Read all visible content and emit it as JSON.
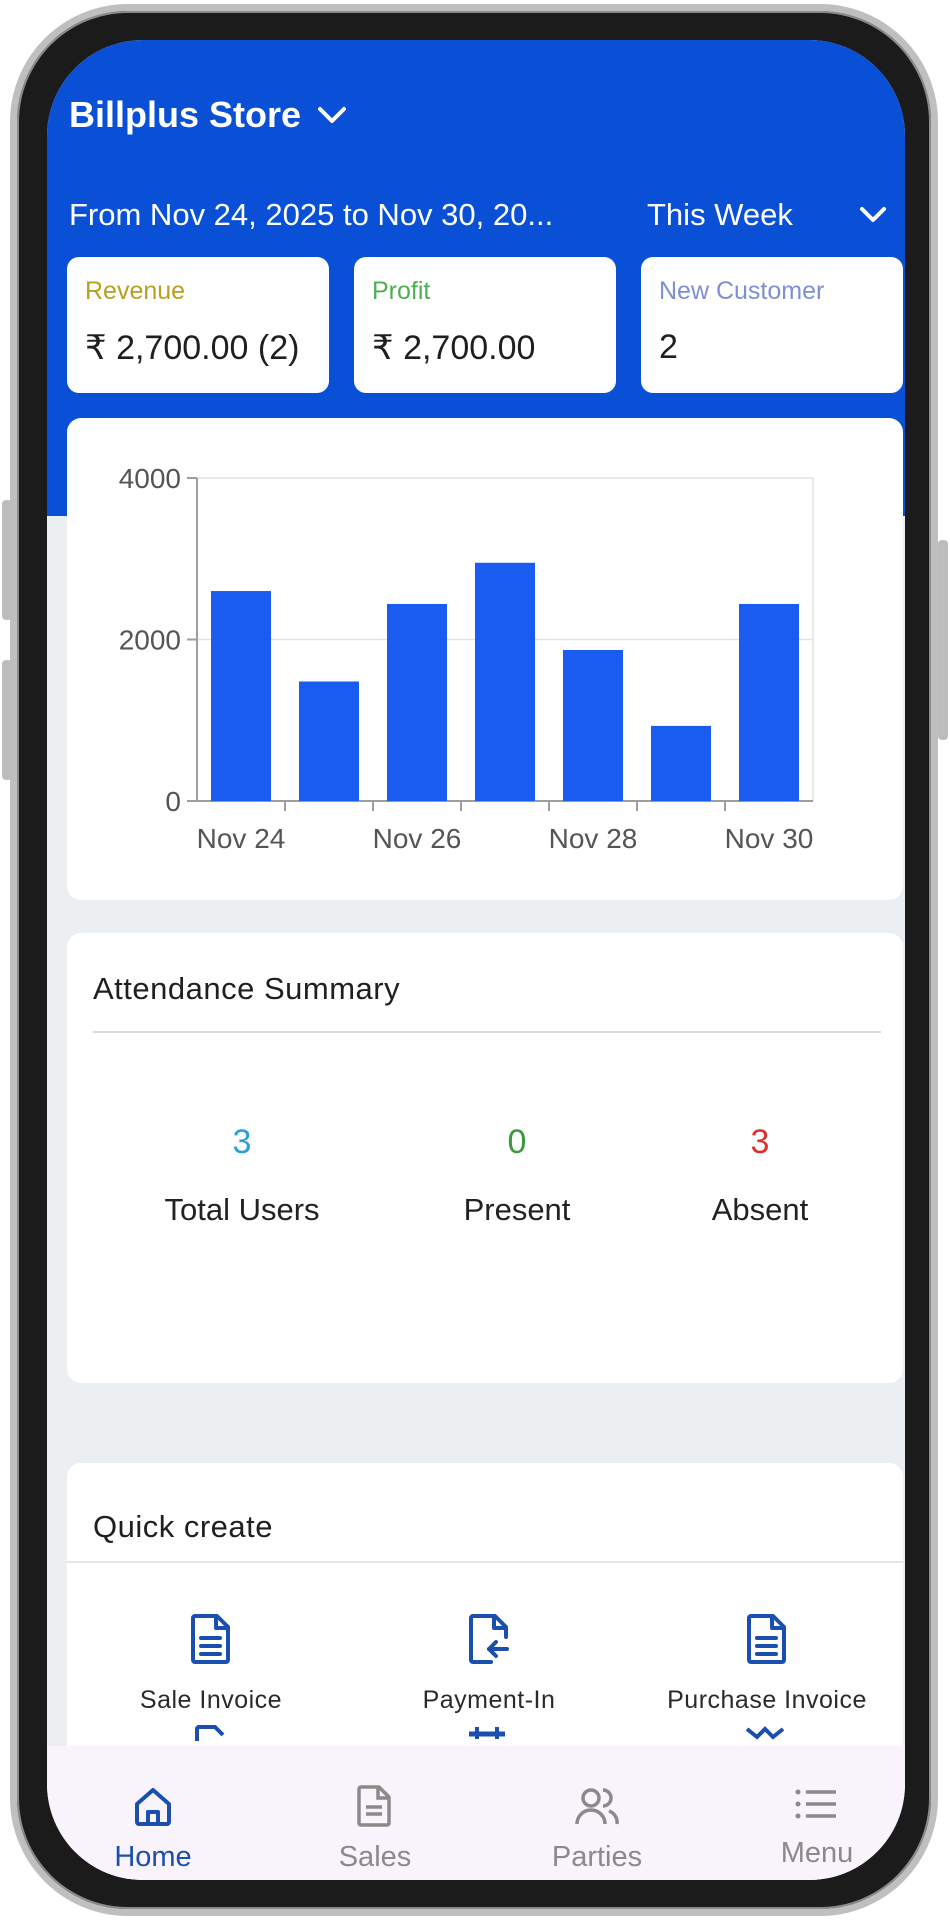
{
  "header": {
    "store_name": "Billplus Store",
    "date_range": "From Nov 24, 2025 to Nov 30, 20...",
    "period": "This Week"
  },
  "stats": [
    {
      "label": "Revenue",
      "value": "₹ 2,700.00 (2)",
      "color": "#b8a01e"
    },
    {
      "label": "Profit",
      "value": "₹ 2,700.00",
      "color": "#4caf50"
    },
    {
      "label": "New Customer",
      "value": "2",
      "color": "#7e8fd6"
    }
  ],
  "chart_data": {
    "type": "bar",
    "categories": [
      "Nov 24",
      "Nov 25",
      "Nov 26",
      "Nov 27",
      "Nov 28",
      "Nov 29",
      "Nov 30"
    ],
    "values": [
      2600,
      1480,
      2440,
      2950,
      1870,
      930,
      2440
    ],
    "ylim": [
      0,
      4000
    ],
    "yticks": [
      "0",
      "2000",
      "4000"
    ],
    "xticks": [
      "Nov 24",
      "Nov 26",
      "Nov 28",
      "Nov 30"
    ],
    "bar_color": "#1a5cf0",
    "grid": true
  },
  "attendance": {
    "title": "Attendance Summary",
    "items": [
      {
        "count": "3",
        "label": "Total Users",
        "color": "#2a9fd6"
      },
      {
        "count": "0",
        "label": "Present",
        "color": "#3a9a3a"
      },
      {
        "count": "3",
        "label": "Absent",
        "color": "#d9322b"
      }
    ]
  },
  "quick_create": {
    "title": "Quick create",
    "items": [
      {
        "label": "Sale Invoice",
        "icon": "document-icon"
      },
      {
        "label": "Payment-In",
        "icon": "payment-in-icon"
      },
      {
        "label": "Purchase Invoice",
        "icon": "document-icon"
      }
    ]
  },
  "bottom_nav": {
    "items": [
      {
        "label": "Home",
        "icon": "home-icon",
        "active": true
      },
      {
        "label": "Sales",
        "icon": "document-icon",
        "active": false
      },
      {
        "label": "Parties",
        "icon": "people-icon",
        "active": false
      },
      {
        "label": "Menu",
        "icon": "menu-icon",
        "active": false
      }
    ],
    "active_color": "#1a4fb0",
    "inactive_color": "#8a8a8a"
  }
}
